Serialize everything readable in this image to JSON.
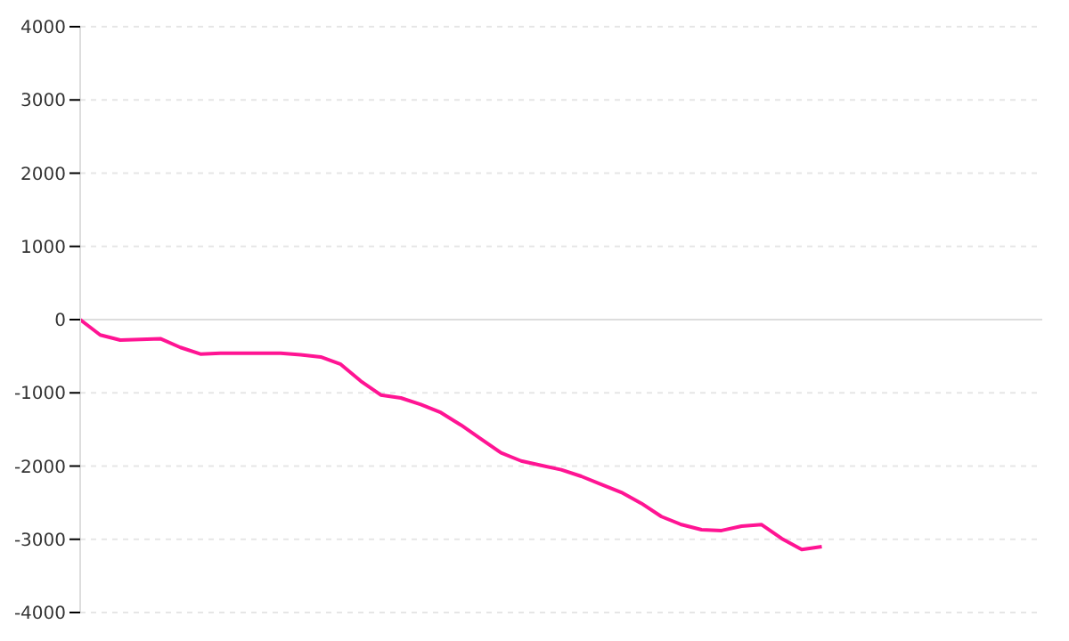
{
  "chart_data": {
    "type": "line",
    "categories": [
      null,
      null,
      null,
      null,
      null,
      null,
      null,
      null,
      null,
      null,
      null,
      null,
      null,
      null,
      null,
      null,
      null,
      null,
      null,
      null,
      null,
      null,
      null,
      null,
      null,
      null,
      null,
      null,
      null,
      null,
      null,
      null,
      null,
      null,
      null,
      null,
      null,
      null,
      null,
      null,
      null,
      null,
      null,
      null,
      null,
      null,
      null,
      null,
      null
    ],
    "series": [
      {
        "color": "#ff1493",
        "values": [
          0,
          -210,
          -280,
          -270,
          -260,
          -380,
          -470,
          -460,
          -460,
          -460,
          -460,
          -480,
          -510,
          -610,
          -840,
          -1030,
          -1070,
          -1160,
          -1270,
          -1440,
          -1630,
          -1820,
          -1930,
          -1990,
          -2050,
          -2140,
          -2250,
          -2360,
          -2510,
          -2690,
          -2800,
          -2870,
          -2880,
          -2820,
          -2800,
          -2990,
          -3140,
          -3100,
          null,
          null,
          null,
          null,
          null,
          null,
          null,
          null,
          null,
          null,
          null
        ]
      }
    ],
    "ylim": [
      -4000,
      4000
    ],
    "yticks": [
      -4000,
      -3000,
      -2000,
      -1000,
      0,
      1000,
      2000,
      3000,
      4000
    ],
    "grid": "y",
    "tick_labels": "y",
    "marker": "none",
    "line_style": "solid",
    "legend": false
  }
}
